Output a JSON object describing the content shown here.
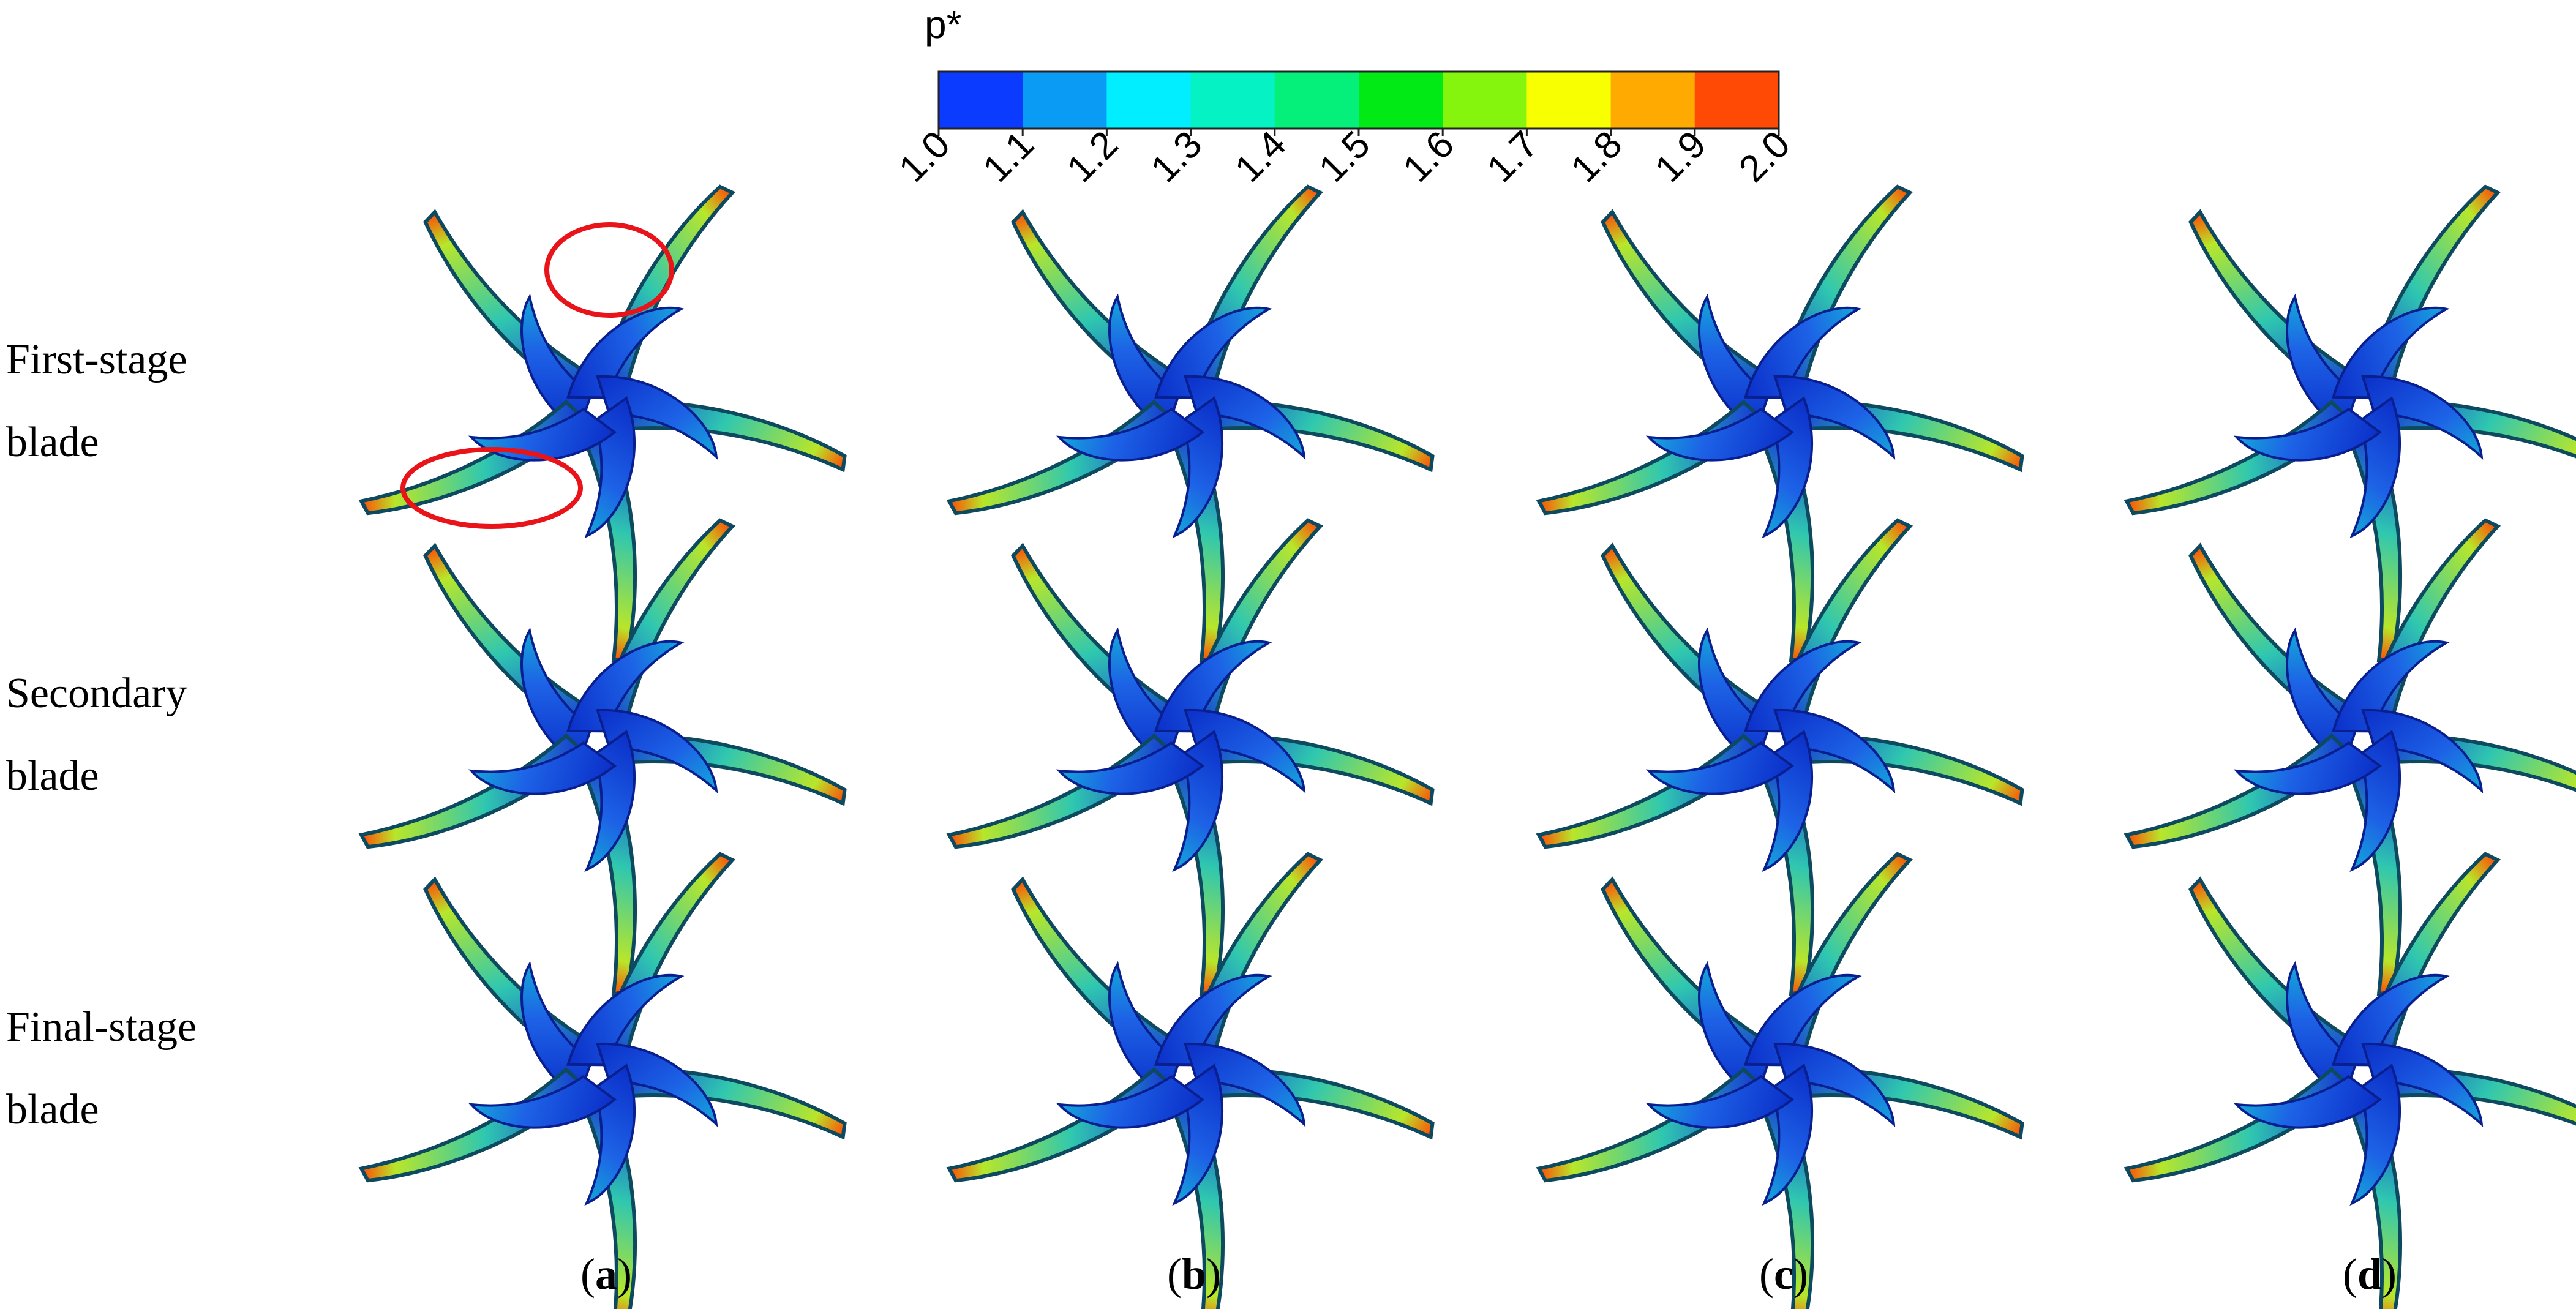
{
  "figure": {
    "colorbar": {
      "title": "p*",
      "levels": [
        {
          "label": "1.0",
          "color": "#0a3bff"
        },
        {
          "label": "1.1",
          "color": "#0a9bf5"
        },
        {
          "label": "1.2",
          "color": "#00eeff"
        },
        {
          "label": "1.3",
          "color": "#05f2c4"
        },
        {
          "label": "1.4",
          "color": "#05f07a"
        },
        {
          "label": "1.5",
          "color": "#02ea16"
        },
        {
          "label": "1.6",
          "color": "#86f50e"
        },
        {
          "label": "1.7",
          "color": "#f7ff00"
        },
        {
          "label": "1.8",
          "color": "#ffaa00"
        },
        {
          "label": "1.9",
          "color": "#ff4a05"
        },
        {
          "label": "2.0",
          "color": ""
        }
      ]
    },
    "rows": [
      {
        "label_line1": "First-stage",
        "label_line2": "blade",
        "circles": "true"
      },
      {
        "label_line1": "Secondary",
        "label_line2": "blade"
      },
      {
        "label_line1": "Final-stage",
        "label_line2": "blade"
      }
    ],
    "columns": [
      {
        "open": "(",
        "letter": "a",
        "close": ")"
      },
      {
        "open": "(",
        "letter": "b",
        "close": ")"
      },
      {
        "open": "(",
        "letter": "c",
        "close": ")"
      },
      {
        "open": "(",
        "letter": "d",
        "close": ")"
      }
    ],
    "colors": {
      "low_pressure": "#1533d6",
      "mid_pressure": "#2fc7b0",
      "high_pressure": "#b8e62a",
      "peak_pressure": "#ff4a05",
      "highlight_circle": "#e8141a"
    }
  }
}
